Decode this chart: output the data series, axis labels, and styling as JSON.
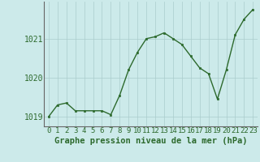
{
  "x": [
    0,
    1,
    2,
    3,
    4,
    5,
    6,
    7,
    8,
    9,
    10,
    11,
    12,
    13,
    14,
    15,
    16,
    17,
    18,
    19,
    20,
    21,
    22,
    23
  ],
  "y": [
    1019.0,
    1019.3,
    1019.35,
    1019.15,
    1019.15,
    1019.15,
    1019.15,
    1019.05,
    1019.55,
    1020.2,
    1020.65,
    1021.0,
    1021.05,
    1021.15,
    1021.0,
    1020.85,
    1020.55,
    1020.25,
    1020.1,
    1019.45,
    1020.2,
    1021.1,
    1021.5,
    1021.75
  ],
  "line_color": "#2d6a2d",
  "marker": "s",
  "marker_size": 2.0,
  "linewidth": 1.0,
  "xlabel": "Graphe pression niveau de la mer (hPa)",
  "ylim": [
    1018.75,
    1021.95
  ],
  "yticks": [
    1019,
    1020,
    1021
  ],
  "xtick_labels": [
    "0",
    "1",
    "2",
    "3",
    "4",
    "5",
    "6",
    "7",
    "8",
    "9",
    "10",
    "11",
    "12",
    "13",
    "14",
    "15",
    "16",
    "17",
    "18",
    "19",
    "20",
    "21",
    "22",
    "23"
  ],
  "bg_color": "#cceaea",
  "plot_bg_color": "#cceaea",
  "grid_color": "#aacccc",
  "tick_label_color": "#2d6a2d",
  "xlabel_color": "#2d6a2d",
  "xlabel_fontsize": 7.5,
  "tick_fontsize": 6.5,
  "ytick_fontsize": 7.0
}
